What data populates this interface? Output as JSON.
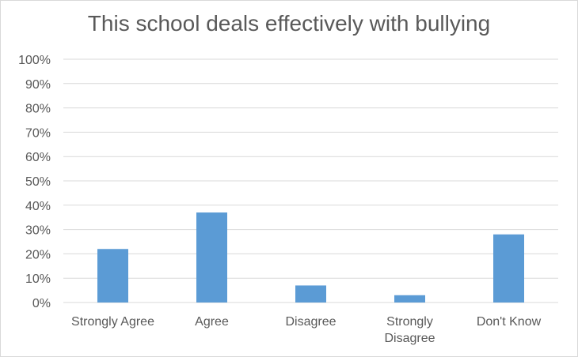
{
  "chart_data": {
    "type": "bar",
    "title": "This school deals effectively with bullying",
    "xlabel": "",
    "ylabel": "",
    "categories": [
      "Strongly Agree",
      "Agree",
      "Disagree",
      "Strongly Disagree",
      "Don't Know"
    ],
    "category_lines": [
      [
        "Strongly Agree"
      ],
      [
        "Agree"
      ],
      [
        "Disagree"
      ],
      [
        "Strongly",
        "Disagree"
      ],
      [
        "Don't Know"
      ]
    ],
    "values": [
      22,
      37,
      7,
      3,
      28
    ],
    "ylim": [
      0,
      100
    ],
    "ytick_step": 10,
    "ytick_labels": [
      "0%",
      "10%",
      "20%",
      "30%",
      "40%",
      "50%",
      "60%",
      "70%",
      "80%",
      "90%",
      "100%"
    ],
    "grid": true,
    "legend": "none",
    "bar_color": "#5B9BD5",
    "grid_color": "#d9d9d9",
    "text_color": "#595959"
  }
}
